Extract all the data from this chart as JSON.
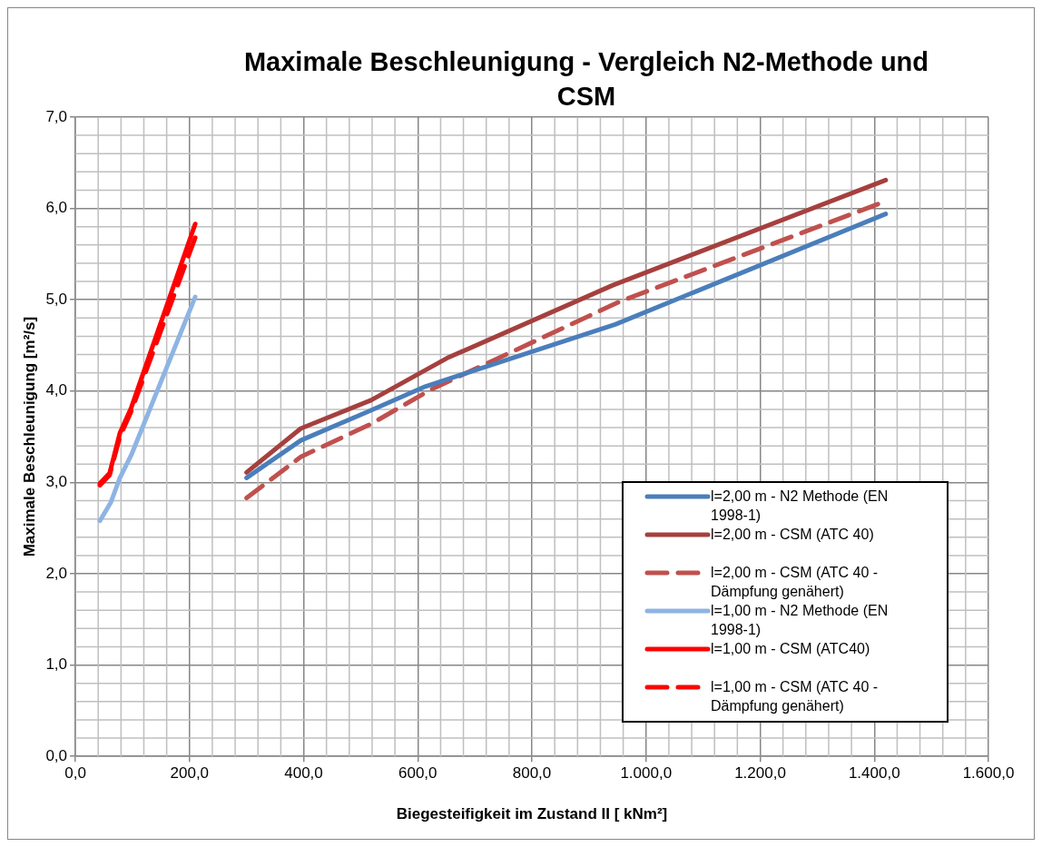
{
  "chart_data": {
    "type": "line",
    "title": "Maximale Beschleunigung - Vergleich N2-Methode  und CSM",
    "xlabel": "Biegesteifigkeit im Zustand II [ kNm²]",
    "ylabel": "Maximale Beschleunigung [m²/s]",
    "xlim": [
      0,
      1600
    ],
    "xticks": [
      {
        "value": 0,
        "label": "0,0"
      },
      {
        "value": 200,
        "label": "200,0"
      },
      {
        "value": 400,
        "label": "400,0"
      },
      {
        "value": 600,
        "label": "600,0"
      },
      {
        "value": 800,
        "label": "800,0"
      },
      {
        "value": 1000,
        "label": "1.000,0"
      },
      {
        "value": 1200,
        "label": "1.200,0"
      },
      {
        "value": 1400,
        "label": "1.400,0"
      },
      {
        "value": 1600,
        "label": "1.600,0"
      }
    ],
    "ylim": [
      0,
      7
    ],
    "yticks": [
      {
        "value": 0,
        "label": "0,0"
      },
      {
        "value": 1,
        "label": "1,0"
      },
      {
        "value": 2,
        "label": "2,0"
      },
      {
        "value": 3,
        "label": "3,0"
      },
      {
        "value": 4,
        "label": "4,0"
      },
      {
        "value": 5,
        "label": "5,0"
      },
      {
        "value": 6,
        "label": "6,0"
      },
      {
        "value": 7,
        "label": "7,0"
      }
    ],
    "grid": true,
    "legend": "bottom right",
    "marker": "none",
    "series": [
      {
        "name": "l=2,00 m - N2 Methode (EN 1998-1)",
        "color": "#4a7ebb",
        "line_style": "solid",
        "x": [
          300,
          395,
          518,
          613,
          946,
          1420
        ],
        "values": [
          3.05,
          3.46,
          3.79,
          4.05,
          4.73,
          5.94
        ]
      },
      {
        "name": "l=2,00 m - CSM (ATC 40)",
        "color": "#a5403e",
        "line_style": "solid",
        "x": [
          300,
          395,
          518,
          651,
          942,
          1420
        ],
        "values": [
          3.11,
          3.59,
          3.9,
          4.36,
          5.16,
          6.31
        ]
      },
      {
        "name": "l=2,00 m - CSM (ATC 40 - Dämpfung genähert)",
        "color": "#c0504d",
        "line_style": "dashed",
        "x": [
          300,
          395,
          518,
          624,
          954,
          1420
        ],
        "values": [
          2.83,
          3.28,
          3.64,
          4.02,
          4.98,
          6.08
        ]
      },
      {
        "name": "l=1,00 m - N2 Methode (EN 1998-1)",
        "color": "#8eb4e3",
        "line_style": "solid",
        "x": [
          43,
          62,
          78,
          98,
          210
        ],
        "values": [
          2.58,
          2.78,
          3.05,
          3.3,
          5.03
        ]
      },
      {
        "name": "l=1,00 m - CSM (ATC40)",
        "color": "#ff0000",
        "line_style": "solid",
        "x": [
          43,
          60,
          78,
          98,
          210
        ],
        "values": [
          2.99,
          3.1,
          3.54,
          3.82,
          5.83
        ]
      },
      {
        "name": "l=1,00 m - CSM (ATC 40 - Dämpfung genähert)",
        "color": "#ff0000",
        "line_style": "dashed",
        "x": [
          43,
          60,
          78,
          98,
          210
        ],
        "values": [
          2.97,
          3.08,
          3.5,
          3.78,
          5.68
        ]
      }
    ]
  }
}
